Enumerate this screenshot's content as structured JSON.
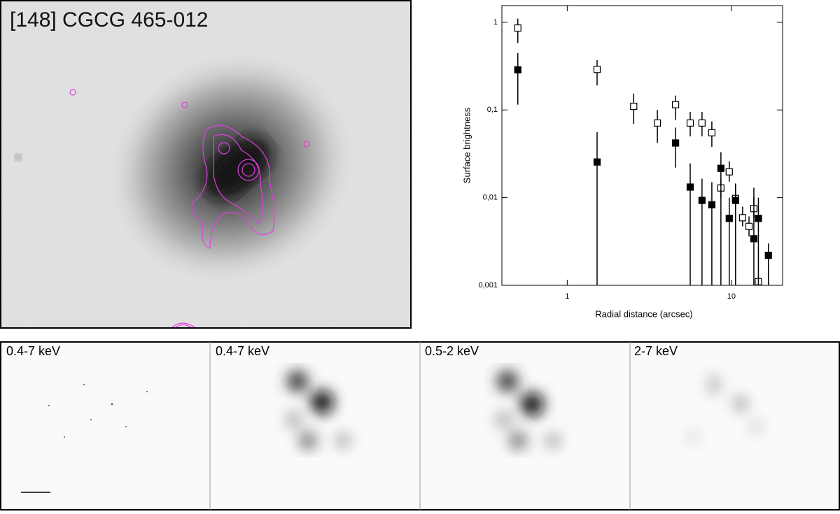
{
  "image": {
    "title": "[148] CGCG 465-012"
  },
  "panels": [
    "0.4-7 keV",
    "0.4-7 keV",
    "0.5-2 keV",
    "2-7 keV"
  ],
  "chart_data": {
    "type": "scatter",
    "x_label": "Radial distance (arcsec)",
    "y_label": "Surface brightness",
    "xscale": "log",
    "yscale": "log",
    "xlim": [
      0.4,
      20.5
    ],
    "ylim": [
      0.001,
      1.55
    ],
    "xticks": [
      1,
      10
    ],
    "yticks": [
      {
        "value": 0.001,
        "label": "0,001"
      },
      {
        "value": 0.01,
        "label": "0,01"
      },
      {
        "value": 0.1,
        "label": "0,1"
      },
      1
    ],
    "series": [
      {
        "marker": "open-square",
        "color": "#000000",
        "x": [
          0.5,
          1.52,
          2.54,
          3.54,
          4.57,
          5.61,
          6.62,
          7.6,
          8.63,
          9.7,
          10.6,
          11.7,
          12.8,
          13.7,
          14.6
        ],
        "values": [
          0.86,
          0.29,
          0.11,
          0.071,
          0.115,
          0.071,
          0.071,
          0.055,
          0.0129,
          0.0197,
          0.0098,
          0.0059,
          0.0047,
          0.0075,
          0.0011
        ],
        "upper": [
          1.1,
          0.37,
          0.154,
          0.1,
          0.146,
          0.095,
          0.095,
          0.074,
          0.0164,
          0.026,
          0.0139,
          0.0079,
          0.0061,
          0.0102,
          0.00128
        ],
        "lower": [
          0.58,
          0.19,
          0.069,
          0.042,
          0.077,
          0.05,
          0.05,
          0.038,
          0.01,
          0.0152,
          0.0073,
          0.0047,
          0.0036,
          0.0059,
          0.001
        ]
      },
      {
        "marker": "filled-square",
        "color": "#000000",
        "x": [
          0.5,
          1.52,
          4.57,
          5.61,
          6.62,
          7.6,
          8.63,
          9.7,
          10.6,
          13.7,
          14.6,
          16.8
        ],
        "values": [
          0.287,
          0.0255,
          0.042,
          0.0132,
          0.0093,
          0.0083,
          0.0216,
          0.0058,
          0.0093,
          0.0034,
          0.0058,
          0.0022
        ],
        "upper": [
          0.446,
          0.056,
          0.063,
          0.0246,
          0.0164,
          0.015,
          0.033,
          0.01,
          0.0145,
          0.013,
          0.01,
          0.003
        ],
        "lower": [
          0.115,
          0.001,
          0.022,
          0.001,
          0.001,
          0.001,
          0.001,
          0.001,
          0.001,
          0.001,
          0.001,
          0.001
        ]
      }
    ]
  }
}
